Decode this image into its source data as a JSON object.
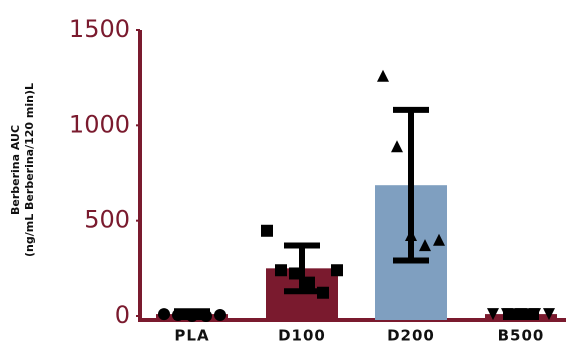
{
  "chart_data": {
    "type": "bar",
    "ylabel": [
      "Berberina AUC",
      "(ng/mL Berberina/120 min)L"
    ],
    "categories": [
      "PLA",
      "D100",
      "D200",
      "B500"
    ],
    "values": [
      10,
      250,
      686,
      10
    ],
    "errors": [
      15,
      120,
      395,
      15
    ],
    "colors": [
      "#7a1a2e",
      "#7a1a2e",
      "#7f9fc0",
      "#7a1a2e"
    ],
    "markers": [
      "circle",
      "square",
      "triangle",
      "triangle-down"
    ],
    "points": [
      [
        10,
        5,
        0,
        0,
        5
      ],
      [
        447,
        240,
        223,
        175,
        122,
        240
      ],
      [
        1260,
        890,
        425,
        372,
        400
      ],
      [
        10,
        10,
        10,
        10,
        10
      ]
    ],
    "ylim": [
      0,
      1500
    ],
    "yticks": [
      0,
      500,
      1000,
      1500
    ],
    "axis_color": "#7a1a2e"
  }
}
